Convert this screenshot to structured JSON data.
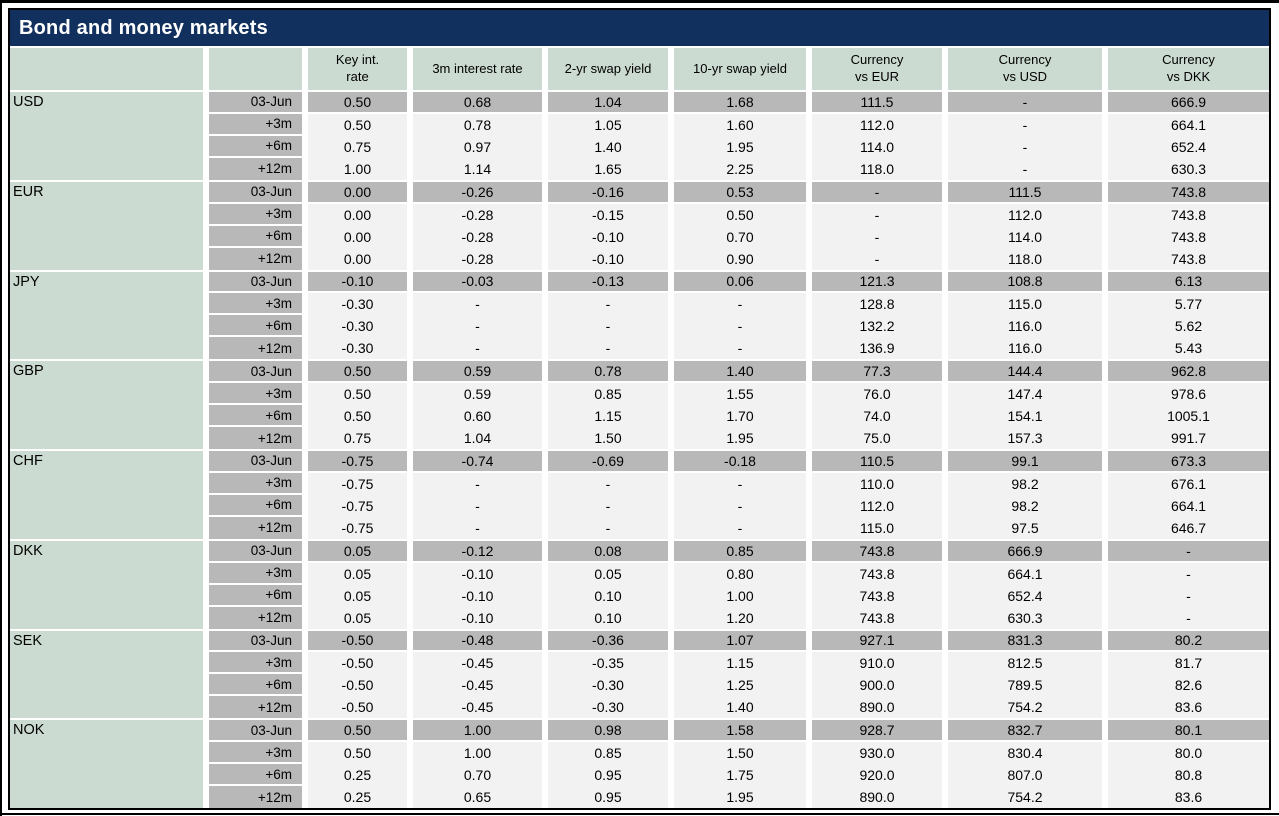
{
  "title": "Bond and money markets",
  "columns": [
    "",
    "",
    "Key int.\nrate",
    "3m interest rate",
    "2-yr swap yield",
    "10-yr swap yield",
    "Currency\nvs EUR",
    "Currency\nvs USD",
    "Currency\nvs DKK"
  ],
  "colors": {
    "navy": "#12305e",
    "green": "#ccdbd1",
    "gray": "#b8b8b8",
    "light": "#f2f2f2",
    "title_text": "#ffffff",
    "body_text": "#000000"
  },
  "sections": [
    {
      "currency": "USD",
      "rows": [
        {
          "date": "03-Jun",
          "values": [
            "0.50",
            "0.68",
            "1.04",
            "1.68",
            "111.5",
            "-",
            "666.9"
          ]
        },
        {
          "date": "+3m",
          "values": [
            "0.50",
            "0.78",
            "1.05",
            "1.60",
            "112.0",
            "-",
            "664.1"
          ]
        },
        {
          "date": "+6m",
          "values": [
            "0.75",
            "0.97",
            "1.40",
            "1.95",
            "114.0",
            "-",
            "652.4"
          ]
        },
        {
          "date": "+12m",
          "values": [
            "1.00",
            "1.14",
            "1.65",
            "2.25",
            "118.0",
            "-",
            "630.3"
          ]
        }
      ]
    },
    {
      "currency": "EUR",
      "rows": [
        {
          "date": "03-Jun",
          "values": [
            "0.00",
            "-0.26",
            "-0.16",
            "0.53",
            "-",
            "111.5",
            "743.8"
          ]
        },
        {
          "date": "+3m",
          "values": [
            "0.00",
            "-0.28",
            "-0.15",
            "0.50",
            "-",
            "112.0",
            "743.8"
          ]
        },
        {
          "date": "+6m",
          "values": [
            "0.00",
            "-0.28",
            "-0.10",
            "0.70",
            "-",
            "114.0",
            "743.8"
          ]
        },
        {
          "date": "+12m",
          "values": [
            "0.00",
            "-0.28",
            "-0.10",
            "0.90",
            "-",
            "118.0",
            "743.8"
          ]
        }
      ]
    },
    {
      "currency": "JPY",
      "rows": [
        {
          "date": "03-Jun",
          "values": [
            "-0.10",
            "-0.03",
            "-0.13",
            "0.06",
            "121.3",
            "108.8",
            "6.13"
          ]
        },
        {
          "date": "+3m",
          "values": [
            "-0.30",
            "-",
            "-",
            "-",
            "128.8",
            "115.0",
            "5.77"
          ]
        },
        {
          "date": "+6m",
          "values": [
            "-0.30",
            "-",
            "-",
            "-",
            "132.2",
            "116.0",
            "5.62"
          ]
        },
        {
          "date": "+12m",
          "values": [
            "-0.30",
            "-",
            "-",
            "-",
            "136.9",
            "116.0",
            "5.43"
          ]
        }
      ]
    },
    {
      "currency": "GBP",
      "rows": [
        {
          "date": "03-Jun",
          "values": [
            "0.50",
            "0.59",
            "0.78",
            "1.40",
            "77.3",
            "144.4",
            "962.8"
          ]
        },
        {
          "date": "+3m",
          "values": [
            "0.50",
            "0.59",
            "0.85",
            "1.55",
            "76.0",
            "147.4",
            "978.6"
          ]
        },
        {
          "date": "+6m",
          "values": [
            "0.50",
            "0.60",
            "1.15",
            "1.70",
            "74.0",
            "154.1",
            "1005.1"
          ]
        },
        {
          "date": "+12m",
          "values": [
            "0.75",
            "1.04",
            "1.50",
            "1.95",
            "75.0",
            "157.3",
            "991.7"
          ]
        }
      ]
    },
    {
      "currency": "CHF",
      "rows": [
        {
          "date": "03-Jun",
          "values": [
            "-0.75",
            "-0.74",
            "-0.69",
            "-0.18",
            "110.5",
            "99.1",
            "673.3"
          ]
        },
        {
          "date": "+3m",
          "values": [
            "-0.75",
            "-",
            "-",
            "-",
            "110.0",
            "98.2",
            "676.1"
          ]
        },
        {
          "date": "+6m",
          "values": [
            "-0.75",
            "-",
            "-",
            "-",
            "112.0",
            "98.2",
            "664.1"
          ]
        },
        {
          "date": "+12m",
          "values": [
            "-0.75",
            "-",
            "-",
            "-",
            "115.0",
            "97.5",
            "646.7"
          ]
        }
      ]
    },
    {
      "currency": "DKK",
      "rows": [
        {
          "date": "03-Jun",
          "values": [
            "0.05",
            "-0.12",
            "0.08",
            "0.85",
            "743.8",
            "666.9",
            "-"
          ]
        },
        {
          "date": "+3m",
          "values": [
            "0.05",
            "-0.10",
            "0.05",
            "0.80",
            "743.8",
            "664.1",
            "-"
          ]
        },
        {
          "date": "+6m",
          "values": [
            "0.05",
            "-0.10",
            "0.10",
            "1.00",
            "743.8",
            "652.4",
            "-"
          ]
        },
        {
          "date": "+12m",
          "values": [
            "0.05",
            "-0.10",
            "0.10",
            "1.20",
            "743.8",
            "630.3",
            "-"
          ]
        }
      ]
    },
    {
      "currency": "SEK",
      "rows": [
        {
          "date": "03-Jun",
          "values": [
            "-0.50",
            "-0.48",
            "-0.36",
            "1.07",
            "927.1",
            "831.3",
            "80.2"
          ]
        },
        {
          "date": "+3m",
          "values": [
            "-0.50",
            "-0.45",
            "-0.35",
            "1.15",
            "910.0",
            "812.5",
            "81.7"
          ]
        },
        {
          "date": "+6m",
          "values": [
            "-0.50",
            "-0.45",
            "-0.30",
            "1.25",
            "900.0",
            "789.5",
            "82.6"
          ]
        },
        {
          "date": "+12m",
          "values": [
            "-0.50",
            "-0.45",
            "-0.30",
            "1.40",
            "890.0",
            "754.2",
            "83.6"
          ]
        }
      ]
    },
    {
      "currency": "NOK",
      "rows": [
        {
          "date": "03-Jun",
          "values": [
            "0.50",
            "1.00",
            "0.98",
            "1.58",
            "928.7",
            "832.7",
            "80.1"
          ]
        },
        {
          "date": "+3m",
          "values": [
            "0.50",
            "1.00",
            "0.85",
            "1.50",
            "930.0",
            "830.4",
            "80.0"
          ]
        },
        {
          "date": "+6m",
          "values": [
            "0.25",
            "0.70",
            "0.95",
            "1.75",
            "920.0",
            "807.0",
            "80.8"
          ]
        },
        {
          "date": "+12m",
          "values": [
            "0.25",
            "0.65",
            "0.95",
            "1.95",
            "890.0",
            "754.2",
            "83.6"
          ]
        }
      ]
    }
  ]
}
